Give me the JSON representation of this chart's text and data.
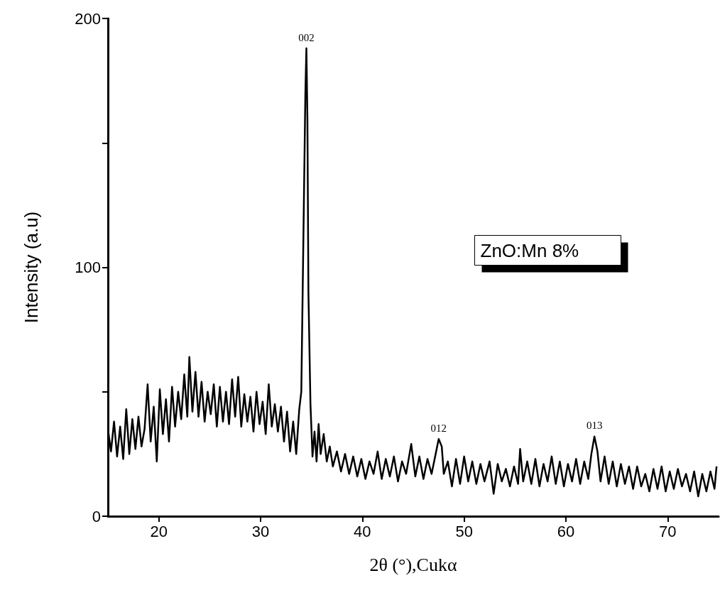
{
  "chart_data": {
    "type": "line",
    "xlabel": "2θ (°),Cukα",
    "ylabel": "Intensity (a.u)",
    "xlim": [
      15,
      75
    ],
    "xticks": [
      20,
      30,
      40,
      50,
      60,
      70
    ],
    "ylim": [
      0,
      200
    ],
    "yticks": [
      0,
      {
        "value": 50,
        "label": null
      },
      100,
      {
        "value": 150,
        "label": null
      },
      200
    ],
    "grid": false,
    "marker": "none",
    "line_style": "solid",
    "annotations": [
      {
        "text": "002",
        "x": 34.5,
        "y": 188
      },
      {
        "text": "012",
        "x": 47.5,
        "y": 31
      },
      {
        "text": "013",
        "x": 62.8,
        "y": 32
      },
      "ZnO:Mn 8%"
    ],
    "series": [
      {
        "color": "#000000",
        "x": [
          15.0,
          15.3,
          15.6,
          15.9,
          16.2,
          16.5,
          16.8,
          17.1,
          17.4,
          17.7,
          18.0,
          18.3,
          18.6,
          18.9,
          19.2,
          19.5,
          19.8,
          20.1,
          20.4,
          20.7,
          21.0,
          21.3,
          21.6,
          21.9,
          22.2,
          22.5,
          22.8,
          23.0,
          23.3,
          23.6,
          23.9,
          24.2,
          24.5,
          24.8,
          25.1,
          25.4,
          25.7,
          26.0,
          26.3,
          26.6,
          26.9,
          27.2,
          27.5,
          27.8,
          28.1,
          28.4,
          28.7,
          29.0,
          29.3,
          29.6,
          29.9,
          30.2,
          30.5,
          30.8,
          31.1,
          31.4,
          31.7,
          32.0,
          32.3,
          32.6,
          32.9,
          33.2,
          33.5,
          33.8,
          34.0,
          34.2,
          34.4,
          34.5,
          34.6,
          34.7,
          34.9,
          35.1,
          35.3,
          35.5,
          35.7,
          35.9,
          36.2,
          36.5,
          36.8,
          37.1,
          37.5,
          37.9,
          38.3,
          38.7,
          39.1,
          39.5,
          39.9,
          40.3,
          40.7,
          41.1,
          41.5,
          41.9,
          42.3,
          42.7,
          43.1,
          43.5,
          43.9,
          44.3,
          44.8,
          45.2,
          45.6,
          46.0,
          46.4,
          46.8,
          47.2,
          47.5,
          47.8,
          48.0,
          48.4,
          48.8,
          49.2,
          49.6,
          50.0,
          50.4,
          50.8,
          51.2,
          51.6,
          52.0,
          52.5,
          52.9,
          53.3,
          53.7,
          54.1,
          54.5,
          54.9,
          55.3,
          55.5,
          55.8,
          56.2,
          56.6,
          57.0,
          57.4,
          57.8,
          58.2,
          58.6,
          59.0,
          59.4,
          59.8,
          60.2,
          60.6,
          61.0,
          61.4,
          61.8,
          62.2,
          62.5,
          62.8,
          63.1,
          63.4,
          63.8,
          64.2,
          64.6,
          65.0,
          65.4,
          65.8,
          66.2,
          66.6,
          67.0,
          67.4,
          67.8,
          68.2,
          68.6,
          69.0,
          69.4,
          69.8,
          70.2,
          70.6,
          71.0,
          71.4,
          71.8,
          72.2,
          72.6,
          73.0,
          73.4,
          73.8,
          74.2,
          74.6,
          74.8
        ],
        "values": [
          35,
          26,
          38,
          24,
          36,
          23,
          43,
          25,
          39,
          27,
          40,
          28,
          35,
          53,
          30,
          44,
          22,
          51,
          33,
          47,
          30,
          52,
          36,
          50,
          39,
          57,
          40,
          64,
          42,
          58,
          40,
          54,
          38,
          50,
          41,
          53,
          36,
          52,
          38,
          50,
          37,
          55,
          40,
          56,
          36,
          49,
          38,
          48,
          34,
          50,
          37,
          46,
          33,
          53,
          36,
          45,
          34,
          44,
          30,
          42,
          26,
          38,
          25,
          43,
          50,
          110,
          170,
          188,
          160,
          90,
          45,
          24,
          34,
          22,
          37,
          25,
          33,
          22,
          28,
          20,
          26,
          18,
          25,
          17,
          24,
          16,
          23,
          15,
          22,
          17,
          26,
          15,
          23,
          16,
          24,
          14,
          22,
          17,
          29,
          16,
          24,
          15,
          23,
          17,
          25,
          31,
          28,
          17,
          22,
          12,
          23,
          13,
          24,
          14,
          22,
          13,
          21,
          14,
          22,
          9,
          21,
          14,
          19,
          12,
          20,
          13,
          27,
          14,
          22,
          13,
          23,
          12,
          21,
          14,
          24,
          13,
          22,
          12,
          21,
          14,
          23,
          13,
          22,
          15,
          25,
          32,
          26,
          14,
          24,
          13,
          22,
          12,
          21,
          13,
          20,
          11,
          20,
          12,
          17,
          10,
          19,
          11,
          20,
          10,
          18,
          11,
          19,
          12,
          17,
          10,
          18,
          8,
          17,
          10,
          18,
          11,
          20
        ]
      }
    ]
  }
}
